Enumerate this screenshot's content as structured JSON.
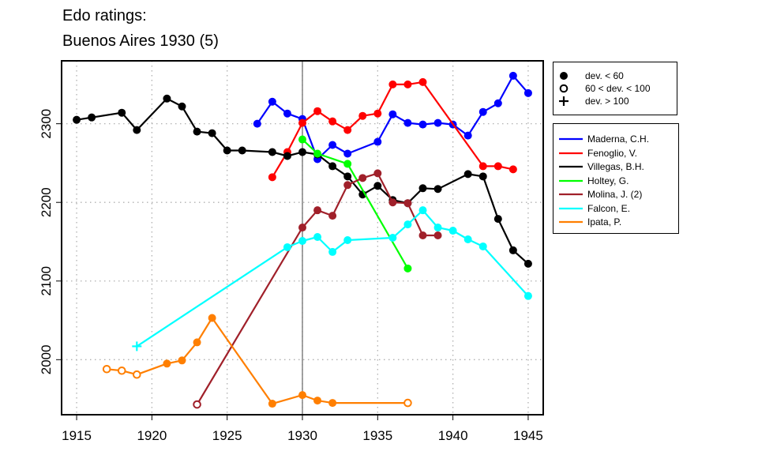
{
  "title_line1": "Edo ratings:",
  "title_line2": "Buenos Aires 1930 (5)",
  "chart_data": {
    "type": "line",
    "title": "Edo ratings: Buenos Aires 1930 (5)",
    "xlabel": "",
    "ylabel": "",
    "xlim": [
      1914,
      1946
    ],
    "ylim": [
      1930,
      2380
    ],
    "xticks": [
      1915,
      1920,
      1925,
      1930,
      1935,
      1940,
      1945
    ],
    "yticks": [
      2000,
      2100,
      2200,
      2300
    ],
    "grid": true,
    "reference_line_x": 1930,
    "deviation_legend": [
      {
        "symbol": "filled",
        "label": "dev. < 60"
      },
      {
        "symbol": "open",
        "label": "60 < dev. < 100"
      },
      {
        "symbol": "cross",
        "label": "dev. > 100"
      }
    ],
    "legend_position": "right",
    "series": [
      {
        "name": "Maderna, C.H.",
        "color": "#0000ff",
        "points": [
          [
            1927,
            2300,
            "filled"
          ],
          [
            1928,
            2328,
            "filled"
          ],
          [
            1929,
            2313,
            "filled"
          ],
          [
            1930,
            2306,
            "filled"
          ],
          [
            1931,
            2255,
            "filled"
          ],
          [
            1932,
            2273,
            "filled"
          ],
          [
            1933,
            2262,
            "filled"
          ],
          [
            1935,
            2277,
            "filled"
          ],
          [
            1936,
            2312,
            "filled"
          ],
          [
            1937,
            2301,
            "filled"
          ],
          [
            1938,
            2299,
            "filled"
          ],
          [
            1939,
            2301,
            "filled"
          ],
          [
            1940,
            2299,
            "filled"
          ],
          [
            1941,
            2285,
            "filled"
          ],
          [
            1942,
            2315,
            "filled"
          ],
          [
            1943,
            2326,
            "filled"
          ],
          [
            1944,
            2361,
            "filled"
          ],
          [
            1945,
            2339,
            "filled"
          ]
        ]
      },
      {
        "name": "Fenoglio, V.",
        "color": "#ff0000",
        "points": [
          [
            1928,
            2232,
            "filled"
          ],
          [
            1929,
            2264,
            "filled"
          ],
          [
            1930,
            2301,
            "filled"
          ],
          [
            1931,
            2316,
            "filled"
          ],
          [
            1932,
            2303,
            "filled"
          ],
          [
            1933,
            2292,
            "filled"
          ],
          [
            1934,
            2310,
            "filled"
          ],
          [
            1935,
            2313,
            "filled"
          ],
          [
            1936,
            2350,
            "filled"
          ],
          [
            1937,
            2350,
            "filled"
          ],
          [
            1938,
            2353,
            "filled"
          ],
          [
            1942,
            2246,
            "filled"
          ],
          [
            1943,
            2246,
            "filled"
          ],
          [
            1944,
            2242,
            "filled"
          ]
        ]
      },
      {
        "name": "Villegas, B.H.",
        "color": "#000000",
        "points": [
          [
            1915,
            2305,
            "filled"
          ],
          [
            1916,
            2308,
            "filled"
          ],
          [
            1918,
            2314,
            "filled"
          ],
          [
            1919,
            2292,
            "filled"
          ],
          [
            1921,
            2332,
            "filled"
          ],
          [
            1922,
            2322,
            "filled"
          ],
          [
            1923,
            2290,
            "filled"
          ],
          [
            1924,
            2288,
            "filled"
          ],
          [
            1925,
            2266,
            "filled"
          ],
          [
            1926,
            2266,
            "filled"
          ],
          [
            1928,
            2264,
            "filled"
          ],
          [
            1929,
            2259,
            "filled"
          ],
          [
            1930,
            2264,
            "filled"
          ],
          [
            1931,
            2261,
            "filled"
          ],
          [
            1932,
            2246,
            "filled"
          ],
          [
            1933,
            2233,
            "filled"
          ],
          [
            1934,
            2210,
            "filled"
          ],
          [
            1935,
            2221,
            "filled"
          ],
          [
            1936,
            2203,
            "filled"
          ],
          [
            1937,
            2199,
            "filled"
          ],
          [
            1938,
            2218,
            "filled"
          ],
          [
            1939,
            2217,
            "filled"
          ],
          [
            1941,
            2236,
            "filled"
          ],
          [
            1942,
            2233,
            "filled"
          ],
          [
            1943,
            2179,
            "filled"
          ],
          [
            1944,
            2139,
            "filled"
          ],
          [
            1945,
            2122,
            "filled"
          ]
        ]
      },
      {
        "name": "Holtey, G.",
        "color": "#00ff00",
        "points": [
          [
            1930,
            2280,
            "filled"
          ],
          [
            1931,
            2262,
            "filled"
          ],
          [
            1933,
            2249,
            "filled"
          ],
          [
            1937,
            2116,
            "filled"
          ]
        ]
      },
      {
        "name": "Molina, J. (2)",
        "color": "#a0202a",
        "points": [
          [
            1923,
            1943,
            "open"
          ],
          [
            1930,
            2168,
            "filled"
          ],
          [
            1931,
            2190,
            "filled"
          ],
          [
            1932,
            2183,
            "filled"
          ],
          [
            1933,
            2222,
            "filled"
          ],
          [
            1934,
            2231,
            "filled"
          ],
          [
            1935,
            2237,
            "filled"
          ],
          [
            1936,
            2200,
            "filled"
          ],
          [
            1937,
            2199,
            "filled"
          ],
          [
            1938,
            2158,
            "filled"
          ],
          [
            1939,
            2158,
            "filled"
          ]
        ]
      },
      {
        "name": "Falcon, E.",
        "color": "#00ffff",
        "points": [
          [
            1919,
            2017,
            "cross"
          ],
          [
            1929,
            2143,
            "filled"
          ],
          [
            1930,
            2151,
            "filled"
          ],
          [
            1931,
            2156,
            "filled"
          ],
          [
            1932,
            2137,
            "filled"
          ],
          [
            1933,
            2152,
            "filled"
          ],
          [
            1936,
            2155,
            "filled"
          ],
          [
            1937,
            2172,
            "filled"
          ],
          [
            1938,
            2190,
            "filled"
          ],
          [
            1939,
            2168,
            "filled"
          ],
          [
            1940,
            2164,
            "filled"
          ],
          [
            1941,
            2153,
            "filled"
          ],
          [
            1942,
            2144,
            "filled"
          ],
          [
            1945,
            2081,
            "filled"
          ]
        ]
      },
      {
        "name": "Ipata, P.",
        "color": "#ff7f00",
        "points": [
          [
            1917,
            1988,
            "open"
          ],
          [
            1918,
            1986,
            "open"
          ],
          [
            1919,
            1981,
            "open"
          ],
          [
            1921,
            1995,
            "filled"
          ],
          [
            1922,
            1999,
            "filled"
          ],
          [
            1923,
            2022,
            "filled"
          ],
          [
            1924,
            2053,
            "filled"
          ],
          [
            1928,
            1944,
            "filled"
          ],
          [
            1930,
            1955,
            "filled"
          ],
          [
            1931,
            1948,
            "filled"
          ],
          [
            1932,
            1945,
            "filled"
          ],
          [
            1937,
            1945,
            "open"
          ]
        ]
      }
    ]
  }
}
